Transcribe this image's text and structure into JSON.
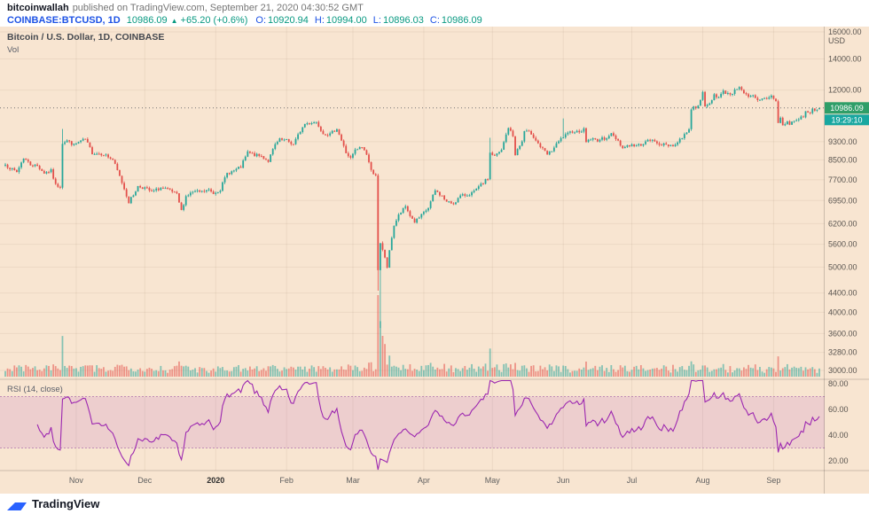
{
  "header": {
    "author": "bitcoinwallah",
    "published": "published on TradingView.com, September 21, 2020 04:30:52 GMT",
    "symbol": "COINBASE:BTCUSD, 1D",
    "last_price": "10986.09",
    "direction_arrow": "▲",
    "change": "+65.20 (+0.6%)",
    "ohlc": [
      {
        "label": "O:",
        "value": "10920.94"
      },
      {
        "label": "H:",
        "value": "10994.00"
      },
      {
        "label": "L:",
        "value": "10896.03"
      },
      {
        "label": "C:",
        "value": "10986.09"
      }
    ]
  },
  "chart": {
    "title": "Bitcoin / U.S. Dollar, 1D, COINBASE",
    "vol_label": "Vol",
    "rsi_label": "RSI (14, close)"
  },
  "footer": {
    "brand": "TradingView"
  },
  "colors": {
    "background": "#f8e5d1",
    "up": "#26a69a",
    "down": "#e3504b",
    "volume_up": "rgba(38,166,154,0.55)",
    "volume_down": "rgba(227,80,75,0.55)",
    "rsi_line": "#9c27b0",
    "rsi_band_fill": "rgba(171,71,188,0.14)",
    "rsi_band_edge": "rgba(142,62,156,0.5)",
    "grid": "rgba(90,60,30,0.07)",
    "axis_text": "#5a5550",
    "axis_line": "rgba(0,0,0,0.18)",
    "last_price_line": "#757575",
    "price_badge_bg": "#2f9e68",
    "countdown_badge_bg": "#18a7a0",
    "badge_text": "#ffffff",
    "month_text": "#5f5f5f",
    "month_year_text": "#2e2e2e"
  },
  "chart_data": {
    "type": "candlestick+volume+rsi",
    "title": "Bitcoin / U.S. Dollar, 1D, COINBASE",
    "x_range": [
      "Oct 2019",
      "Sep 21 2020"
    ],
    "days_total": 357,
    "y_axis": {
      "scale": "log",
      "unit": "USD",
      "top_value": 16000,
      "bottom_value": 3000,
      "labels": [
        16000,
        14000,
        12000,
        9300,
        8500,
        7700,
        6950,
        6200,
        5600,
        5000,
        4400,
        4000,
        3600,
        3280,
        3000
      ]
    },
    "last_price": 10986.09,
    "last_price_label": "10986.09",
    "countdown": "19:29:10",
    "final_candle": {
      "o": 10920.94,
      "h": 10994.0,
      "l": 10896.03,
      "c": 10986.09
    },
    "price_anchors": [
      [
        0,
        8300
      ],
      [
        3,
        8100
      ],
      [
        5,
        8000
      ],
      [
        8,
        8590
      ],
      [
        11,
        8300
      ],
      [
        14,
        8250
      ],
      [
        17,
        7970
      ],
      [
        20,
        8050
      ],
      [
        22,
        7500
      ],
      [
        24,
        7450
      ],
      [
        25,
        9250
      ],
      [
        27,
        9350
      ],
      [
        30,
        9150
      ],
      [
        33,
        9320
      ],
      [
        35,
        9400
      ],
      [
        38,
        8800
      ],
      [
        43,
        8750
      ],
      [
        47,
        8500
      ],
      [
        51,
        7600
      ],
      [
        54,
        6900
      ],
      [
        56,
        7150
      ],
      [
        58,
        7450
      ],
      [
        61,
        7400
      ],
      [
        64,
        7250
      ],
      [
        68,
        7400
      ],
      [
        72,
        7300
      ],
      [
        75,
        7150
      ],
      [
        77,
        6600
      ],
      [
        79,
        7100
      ],
      [
        82,
        7250
      ],
      [
        86,
        7250
      ],
      [
        89,
        7320
      ],
      [
        91,
        7200
      ],
      [
        94,
        7350
      ],
      [
        97,
        7950
      ],
      [
        100,
        8050
      ],
      [
        103,
        8200
      ],
      [
        106,
        8820
      ],
      [
        109,
        8700
      ],
      [
        112,
        8650
      ],
      [
        115,
        8450
      ],
      [
        118,
        9150
      ],
      [
        120,
        9380
      ],
      [
        123,
        9350
      ],
      [
        126,
        9170
      ],
      [
        129,
        9800
      ],
      [
        131,
        10150
      ],
      [
        134,
        10230
      ],
      [
        136,
        10250
      ],
      [
        139,
        9700
      ],
      [
        142,
        9630
      ],
      [
        145,
        9940
      ],
      [
        147,
        9350
      ],
      [
        149,
        8800
      ],
      [
        151,
        8550
      ],
      [
        153,
        8900
      ],
      [
        156,
        9060
      ],
      [
        158,
        8750
      ],
      [
        160,
        8050
      ],
      [
        162,
        7900
      ],
      [
        163,
        4900
      ],
      [
        164,
        5600
      ],
      [
        166,
        5250
      ],
      [
        167,
        5000
      ],
      [
        169,
        5800
      ],
      [
        170,
        6150
      ],
      [
        172,
        6450
      ],
      [
        175,
        6750
      ],
      [
        177,
        6450
      ],
      [
        179,
        6250
      ],
      [
        182,
        6450
      ],
      [
        185,
        6700
      ],
      [
        188,
        7300
      ],
      [
        191,
        7100
      ],
      [
        193,
        6900
      ],
      [
        196,
        6850
      ],
      [
        199,
        7100
      ],
      [
        202,
        7150
      ],
      [
        205,
        7250
      ],
      [
        208,
        7500
      ],
      [
        211,
        7750
      ],
      [
        212,
        8800
      ],
      [
        214,
        8650
      ],
      [
        217,
        8900
      ],
      [
        220,
        9980
      ],
      [
        222,
        9550
      ],
      [
        223,
        8750
      ],
      [
        226,
        9300
      ],
      [
        227,
        9790
      ],
      [
        230,
        9690
      ],
      [
        232,
        9380
      ],
      [
        234,
        9060
      ],
      [
        237,
        8720
      ],
      [
        239,
        8900
      ],
      [
        243,
        9420
      ],
      [
        244,
        9520
      ],
      [
        246,
        9650
      ],
      [
        248,
        9800
      ],
      [
        250,
        9770
      ],
      [
        253,
        9870
      ],
      [
        254,
        9320
      ],
      [
        256,
        9430
      ],
      [
        259,
        9370
      ],
      [
        262,
        9450
      ],
      [
        265,
        9650
      ],
      [
        268,
        9350
      ],
      [
        270,
        9010
      ],
      [
        272,
        9130
      ],
      [
        274,
        9140
      ],
      [
        276,
        9100
      ],
      [
        279,
        9230
      ],
      [
        282,
        9375
      ],
      [
        285,
        9250
      ],
      [
        288,
        9150
      ],
      [
        290,
        9130
      ],
      [
        293,
        9160
      ],
      [
        295,
        9390
      ],
      [
        297,
        9620
      ],
      [
        299,
        9930
      ],
      [
        300,
        10950
      ],
      [
        302,
        11050
      ],
      [
        304,
        11350
      ],
      [
        305,
        11810
      ],
      [
        306,
        11070
      ],
      [
        308,
        11200
      ],
      [
        310,
        11750
      ],
      [
        312,
        11570
      ],
      [
        314,
        11900
      ],
      [
        317,
        11770
      ],
      [
        319,
        11950
      ],
      [
        321,
        12250
      ],
      [
        323,
        11850
      ],
      [
        325,
        11550
      ],
      [
        327,
        11650
      ],
      [
        329,
        11350
      ],
      [
        331,
        11470
      ],
      [
        333,
        11530
      ],
      [
        335,
        11650
      ],
      [
        337,
        11400
      ],
      [
        338,
        10200
      ],
      [
        339,
        10450
      ],
      [
        340,
        10050
      ],
      [
        342,
        10250
      ],
      [
        343,
        10150
      ],
      [
        345,
        10300
      ],
      [
        347,
        10400
      ],
      [
        349,
        10550
      ],
      [
        350,
        10800
      ],
      [
        352,
        10680
      ],
      [
        353,
        10930
      ],
      [
        355,
        10900
      ],
      [
        356,
        10986.09
      ]
    ],
    "wick_overrides": [
      {
        "day": 25,
        "high": 9900
      },
      {
        "day": 163,
        "low": 4450
      },
      {
        "day": 164,
        "low": 3700
      },
      {
        "day": 212,
        "high": 9480
      },
      {
        "day": 244,
        "high": 10430
      }
    ],
    "volume_spikes": [
      {
        "day": 163,
        "v": 1.0
      },
      {
        "day": 164,
        "v": 0.68
      },
      {
        "day": 165,
        "v": 0.5
      },
      {
        "day": 166,
        "v": 0.4
      }
    ],
    "rsi": {
      "label": "RSI (14, close)",
      "period": 14,
      "band": [
        30,
        70
      ],
      "axis_labels": [
        80,
        60,
        40,
        20
      ]
    },
    "months": [
      {
        "label": "Nov",
        "day": 31
      },
      {
        "label": "Dec",
        "day": 61
      },
      {
        "label": "2020",
        "day": 92,
        "year": true
      },
      {
        "label": "Feb",
        "day": 123
      },
      {
        "label": "Mar",
        "day": 152
      },
      {
        "label": "Apr",
        "day": 183
      },
      {
        "label": "May",
        "day": 213
      },
      {
        "label": "Jun",
        "day": 244
      },
      {
        "label": "Jul",
        "day": 274
      },
      {
        "label": "Aug",
        "day": 305
      },
      {
        "label": "Sep",
        "day": 336
      }
    ]
  }
}
